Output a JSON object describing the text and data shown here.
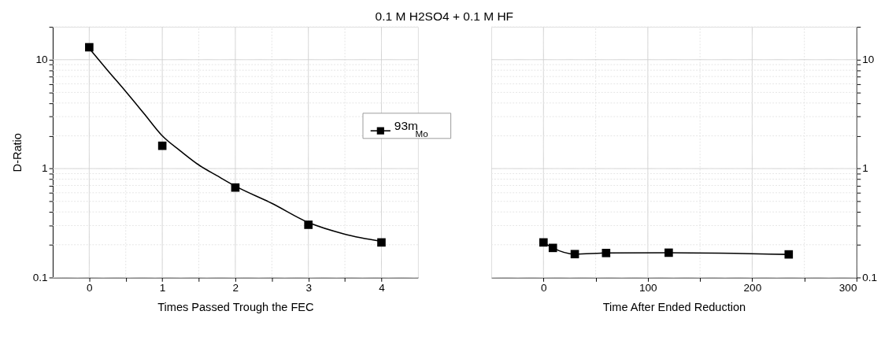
{
  "chart_data": [
    {
      "type": "line",
      "title": "0.1 M H2SO4 + 0.1 M HF",
      "xlabel": "Times Passed Trough the FEC",
      "ylabel": "D-Ratio",
      "log": "y",
      "grid": true,
      "legend": "right",
      "xlim": [
        -0.5,
        4.5
      ],
      "xticks": [
        0,
        {
          "value": 0.5,
          "label": null
        },
        1,
        {
          "value": 1.5,
          "label": null
        },
        2,
        {
          "value": 2.5,
          "label": null
        },
        3,
        {
          "value": 3.5,
          "label": null
        },
        4
      ],
      "ylim": [
        0.1,
        20
      ],
      "yticks": [
        0.1,
        {
          "value": 0.2,
          "label": null
        },
        {
          "value": 0.3,
          "label": null
        },
        {
          "value": 0.4,
          "label": null
        },
        {
          "value": 0.5,
          "label": null
        },
        {
          "value": 0.6,
          "label": null
        },
        {
          "value": 0.7,
          "label": null
        },
        {
          "value": 0.8,
          "label": null
        },
        {
          "value": 0.9,
          "label": null
        },
        1,
        {
          "value": 2,
          "label": null
        },
        {
          "value": 3,
          "label": null
        },
        {
          "value": 4,
          "label": null
        },
        {
          "value": 5,
          "label": null
        },
        {
          "value": 6,
          "label": null
        },
        {
          "value": 7,
          "label": null
        },
        {
          "value": 8,
          "label": null
        },
        {
          "value": 9,
          "label": null
        },
        10,
        {
          "value": 20,
          "label": null
        }
      ],
      "series": [
        {
          "name": "93m$_{Mo}$",
          "type": "scatter",
          "marker": "square",
          "color": "#000000",
          "x": [
            0,
            1,
            2,
            3,
            4
          ],
          "values": [
            13,
            1.62,
            0.67,
            0.305,
            0.21
          ]
        },
        {
          "marker": "none",
          "line_style": "solid",
          "color": "#000000",
          "x": [
            0,
            0.25,
            0.5,
            0.75,
            1,
            1.25,
            1.5,
            1.75,
            2,
            2.5,
            3,
            3.5,
            4
          ],
          "values": [
            12.7,
            8.0,
            5.1,
            3.2,
            2.0,
            1.45,
            1.08,
            0.86,
            0.69,
            0.48,
            0.32,
            0.25,
            0.215
          ]
        }
      ]
    },
    {
      "type": "line",
      "xlabel": "Time After Ended Reduction",
      "log": "y2",
      "grid": true,
      "xlim": [
        -50,
        300
      ],
      "xticks": [
        0,
        {
          "value": 50,
          "label": null
        },
        100,
        {
          "value": 150,
          "label": null
        },
        200,
        {
          "value": 250,
          "label": null
        },
        300
      ],
      "y2lim": [
        0.1,
        20
      ],
      "y2ticks": [
        0.1,
        {
          "value": 0.2,
          "label": null
        },
        {
          "value": 0.3,
          "label": null
        },
        {
          "value": 0.4,
          "label": null
        },
        {
          "value": 0.5,
          "label": null
        },
        {
          "value": 0.6,
          "label": null
        },
        {
          "value": 0.7,
          "label": null
        },
        {
          "value": 0.8,
          "label": null
        },
        {
          "value": 0.9,
          "label": null
        },
        1,
        {
          "value": 2,
          "label": null
        },
        {
          "value": 3,
          "label": null
        },
        {
          "value": 4,
          "label": null
        },
        {
          "value": 5,
          "label": null
        },
        {
          "value": 6,
          "label": null
        },
        {
          "value": 7,
          "label": null
        },
        {
          "value": 8,
          "label": null
        },
        {
          "value": 9,
          "label": null
        },
        10,
        {
          "value": 20,
          "label": null
        }
      ],
      "series": [
        {
          "marker": "square",
          "line_style": "solid",
          "axis": "y2",
          "color": "#000000",
          "x": [
            0,
            9,
            30,
            60,
            120,
            235
          ],
          "values": [
            0.21,
            0.187,
            0.164,
            0.168,
            0.169,
            0.163
          ]
        }
      ]
    }
  ]
}
